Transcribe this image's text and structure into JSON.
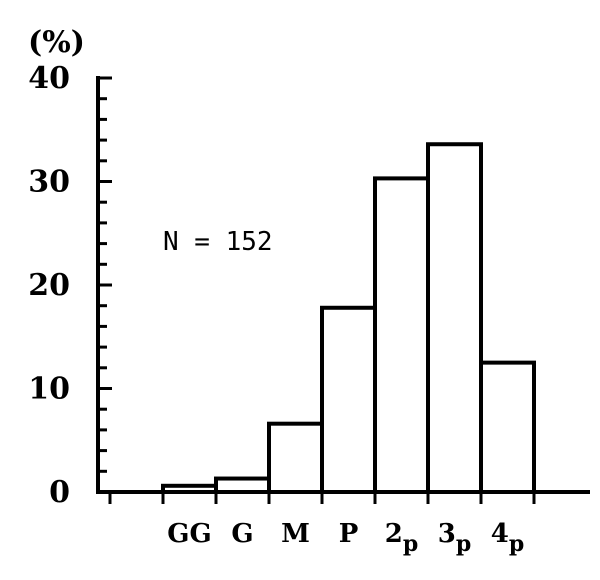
{
  "chart_data": {
    "type": "bar",
    "ylabel": "(%)",
    "xlabel": "",
    "ylim": [
      0,
      40
    ],
    "yticks": [
      0,
      10,
      20,
      30,
      40
    ],
    "yticks_minor_step": 2,
    "categories": [
      {
        "main": "GG",
        "sub": ""
      },
      {
        "main": "G",
        "sub": ""
      },
      {
        "main": "M",
        "sub": ""
      },
      {
        "main": "P",
        "sub": ""
      },
      {
        "main": "2",
        "sub": "p"
      },
      {
        "main": "3",
        "sub": "p"
      },
      {
        "main": "4",
        "sub": "p"
      }
    ],
    "values": [
      0.6,
      1.3,
      6.6,
      17.8,
      30.3,
      33.6,
      12.5
    ],
    "annotation": "N = 152",
    "grid": false
  }
}
